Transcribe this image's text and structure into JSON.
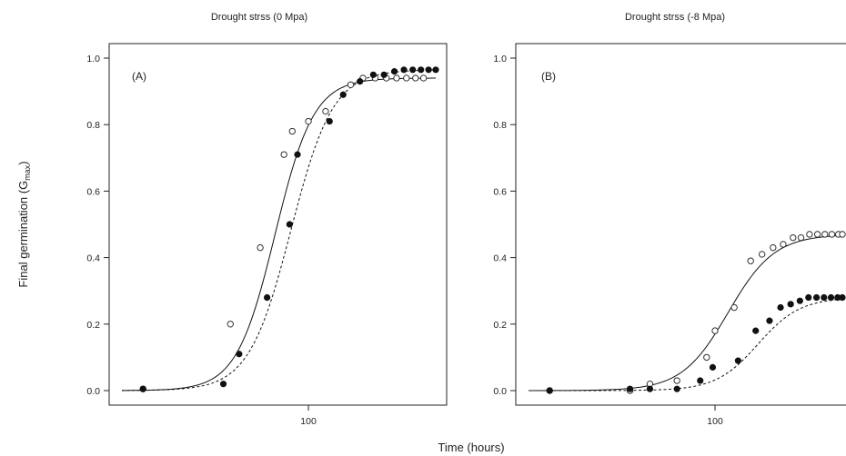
{
  "chart_data": [
    {
      "type": "scatter",
      "title": "Drought strss (0 Mpa)",
      "panel_label": "(A)",
      "ylabel": "Final germination (G",
      "ylabel_sub": "max",
      "ylabel_close": ")",
      "xlabel": "Time (hours)",
      "x_scale": "log",
      "xlim": [
        20,
        300
      ],
      "ylim": [
        0,
        1.0
      ],
      "x_ticks": [
        {
          "value": 100,
          "label": "100"
        }
      ],
      "y_ticks": [
        {
          "value": 0.0,
          "label": "0.0"
        },
        {
          "value": 0.2,
          "label": "0.2"
        },
        {
          "value": 0.4,
          "label": "0.4"
        },
        {
          "value": 0.6,
          "label": "0.6"
        },
        {
          "value": 0.8,
          "label": "0.8"
        },
        {
          "value": 1.0,
          "label": "1.0"
        }
      ],
      "series": [
        {
          "marker": "open-circle",
          "line": "solid",
          "fit": {
            "asymptote": 0.94,
            "midpoint": 75,
            "slope": 6.0
          },
          "x": [
            24,
            51,
            66,
            81,
            87,
            100,
            116,
            144,
            160,
            178,
            196,
            214,
            233,
            252,
            270
          ],
          "y": [
            0.005,
            0.2,
            0.43,
            0.71,
            0.78,
            0.81,
            0.84,
            0.92,
            0.94,
            0.94,
            0.94,
            0.94,
            0.94,
            0.94,
            0.94
          ]
        },
        {
          "marker": "filled-circle",
          "line": "dashed",
          "fit": {
            "asymptote": 0.965,
            "midpoint": 86,
            "slope": 5.5
          },
          "x": [
            24,
            48,
            55,
            70,
            85,
            91,
            120,
            135,
            156,
            175,
            192,
            210,
            228,
            246,
            264,
            282,
            300
          ],
          "y": [
            0.005,
            0.02,
            0.11,
            0.28,
            0.5,
            0.71,
            0.81,
            0.89,
            0.93,
            0.95,
            0.95,
            0.96,
            0.965,
            0.965,
            0.965,
            0.965,
            0.965
          ]
        }
      ]
    },
    {
      "type": "scatter",
      "title": "Drought strss (-8 Mpa)",
      "panel_label": "(B)",
      "xlabel": "Time (hours)",
      "x_scale": "log",
      "xlim": [
        20,
        300
      ],
      "ylim": [
        0,
        1.0
      ],
      "x_ticks": [
        {
          "value": 100,
          "label": "100"
        }
      ],
      "y_ticks": [
        {
          "value": 0.0,
          "label": "0.0"
        },
        {
          "value": 0.2,
          "label": "0.2"
        },
        {
          "value": 0.4,
          "label": "0.4"
        },
        {
          "value": 0.6,
          "label": "0.6"
        },
        {
          "value": 0.8,
          "label": "0.8"
        },
        {
          "value": 1.0,
          "label": "1.0"
        }
      ],
      "series": [
        {
          "marker": "open-circle",
          "line": "solid",
          "fit": {
            "asymptote": 0.47,
            "midpoint": 112,
            "slope": 5.0
          },
          "x": [
            24,
            48,
            57,
            72,
            93,
            100,
            118,
            136,
            150,
            165,
            180,
            196,
            210,
            226,
            242,
            258,
            274,
            290,
            300
          ],
          "y": [
            0.0,
            0.0,
            0.02,
            0.03,
            0.1,
            0.18,
            0.25,
            0.39,
            0.41,
            0.43,
            0.44,
            0.46,
            0.46,
            0.47,
            0.47,
            0.47,
            0.47,
            0.47,
            0.47
          ]
        },
        {
          "marker": "filled-circle",
          "line": "dashed",
          "fit": {
            "asymptote": 0.28,
            "midpoint": 145,
            "slope": 5.5
          },
          "x": [
            24,
            48,
            57,
            72,
            88,
            98,
            122,
            142,
            160,
            176,
            192,
            208,
            224,
            240,
            256,
            272,
            288,
            300
          ],
          "y": [
            0.0,
            0.005,
            0.005,
            0.005,
            0.03,
            0.07,
            0.09,
            0.18,
            0.21,
            0.25,
            0.26,
            0.27,
            0.28,
            0.28,
            0.28,
            0.28,
            0.28,
            0.28
          ]
        }
      ]
    }
  ]
}
